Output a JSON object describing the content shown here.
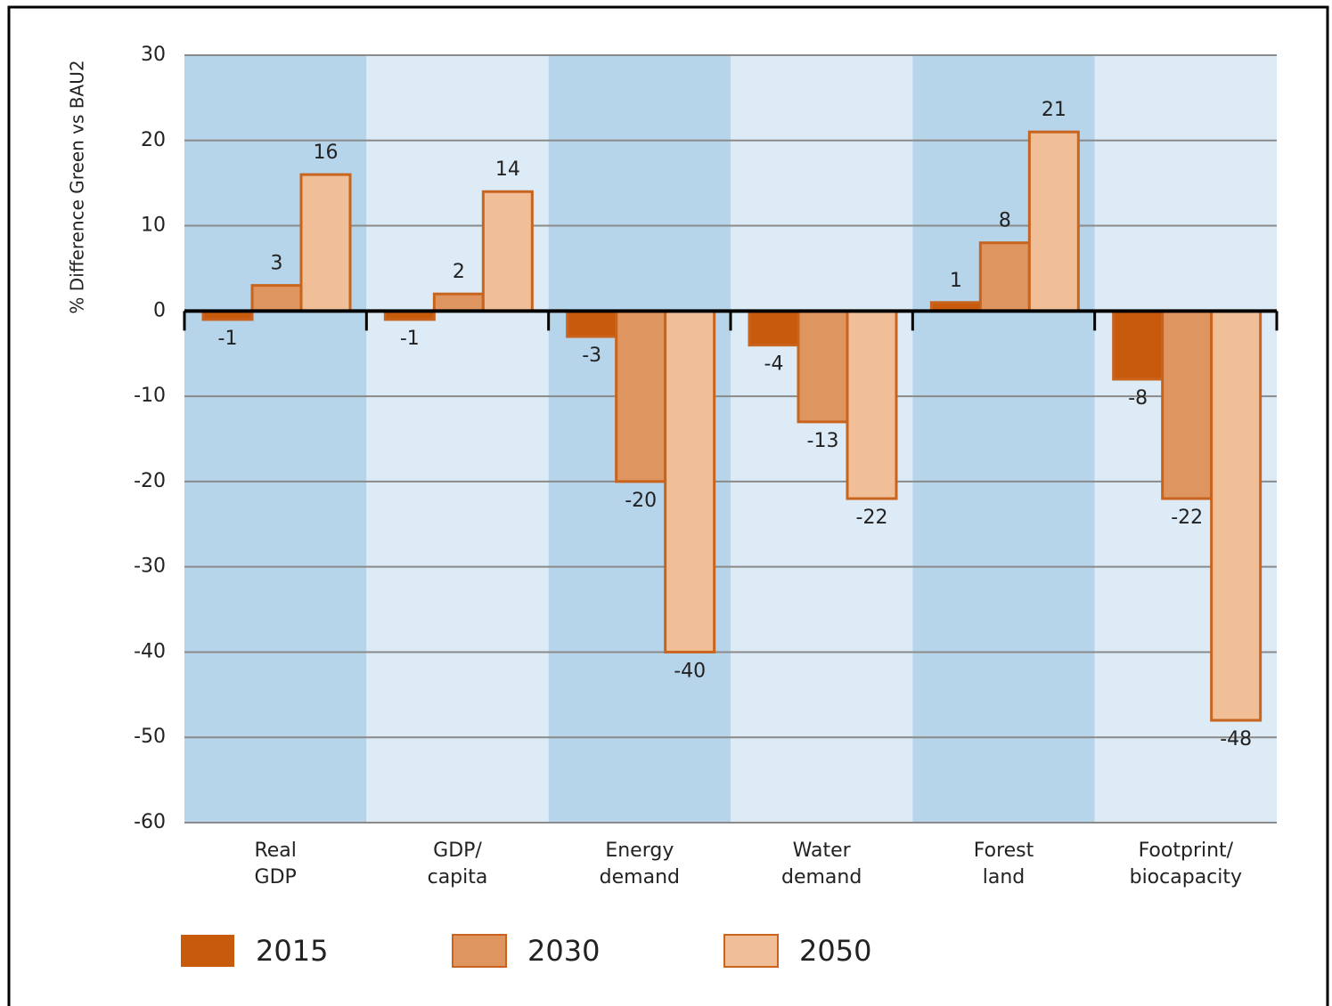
{
  "chart_data": {
    "type": "bar",
    "ylabel": "% Difference Green vs BAU2",
    "categories": [
      [
        "Real",
        "GDP"
      ],
      [
        "GDP/",
        "capita"
      ],
      [
        "Energy",
        "demand"
      ],
      [
        "Water",
        "demand"
      ],
      [
        "Forest",
        "land"
      ],
      [
        "Footprint/",
        "biocapacity"
      ]
    ],
    "series": [
      {
        "name": "2015",
        "color": "#c85a0c",
        "values": [
          -1,
          -1,
          -3,
          -4,
          1,
          -8
        ]
      },
      {
        "name": "2030",
        "color": "#de9560",
        "values": [
          3,
          2,
          -20,
          -13,
          8,
          -22
        ]
      },
      {
        "name": "2050",
        "color": "#f0bf97",
        "values": [
          16,
          14,
          -40,
          -22,
          21,
          -48
        ]
      }
    ],
    "ylim": [
      -60,
      30
    ],
    "yticks": [
      -60,
      -50,
      -40,
      -30,
      -20,
      -10,
      0,
      10,
      20,
      30
    ],
    "grid": true,
    "legend": "bottom"
  }
}
